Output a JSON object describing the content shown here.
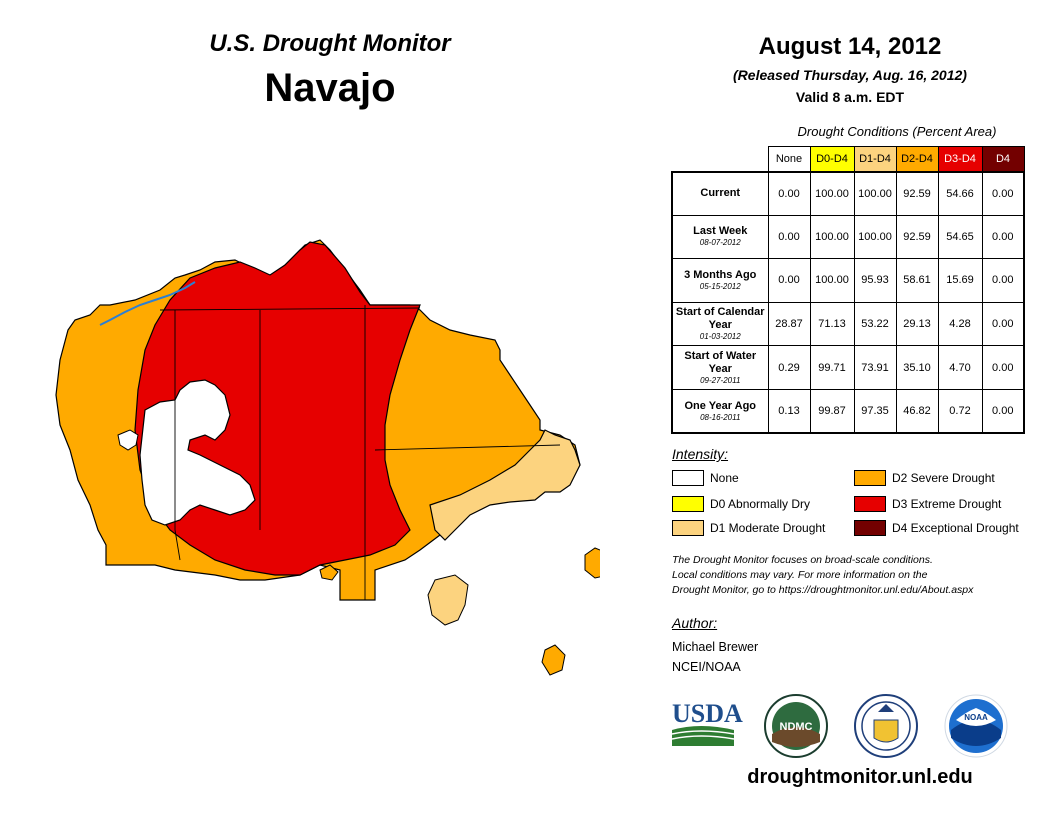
{
  "header": {
    "title": "U.S. Drought Monitor",
    "region": "Navajo",
    "date": "August 14, 2012",
    "released": "(Released Thursday, Aug. 16, 2012)",
    "valid": "Valid 8 a.m. EDT"
  },
  "table": {
    "caption": "Drought Conditions (Percent Area)",
    "columns": [
      {
        "label": "None",
        "bg": "#ffffff",
        "fg": "#000000"
      },
      {
        "label": "D0-D4",
        "bg": "#ffff00",
        "fg": "#000000"
      },
      {
        "label": "D1-D4",
        "bg": "#fcd37f",
        "fg": "#000000"
      },
      {
        "label": "D2-D4",
        "bg": "#ffaa00",
        "fg": "#000000"
      },
      {
        "label": "D3-D4",
        "bg": "#e60000",
        "fg": "#ffffff"
      },
      {
        "label": "D4",
        "bg": "#730000",
        "fg": "#ffffff"
      }
    ],
    "rows": [
      {
        "label": "Current",
        "date": "",
        "values": [
          "0.00",
          "100.00",
          "100.00",
          "92.59",
          "54.66",
          "0.00"
        ]
      },
      {
        "label": "Last Week",
        "date": "08-07-2012",
        "values": [
          "0.00",
          "100.00",
          "100.00",
          "92.59",
          "54.65",
          "0.00"
        ]
      },
      {
        "label": "3 Months Ago",
        "date": "05-15-2012",
        "values": [
          "0.00",
          "100.00",
          "95.93",
          "58.61",
          "15.69",
          "0.00"
        ]
      },
      {
        "label": "Start of Calendar Year",
        "date": "01-03-2012",
        "values": [
          "28.87",
          "71.13",
          "53.22",
          "29.13",
          "4.28",
          "0.00"
        ]
      },
      {
        "label": "Start of Water Year",
        "date": "09-27-2011",
        "values": [
          "0.29",
          "99.71",
          "73.91",
          "35.10",
          "4.70",
          "0.00"
        ]
      },
      {
        "label": "One Year Ago",
        "date": "08-16-2011",
        "values": [
          "0.13",
          "99.87",
          "97.35",
          "46.82",
          "0.72",
          "0.00"
        ]
      }
    ]
  },
  "legend": {
    "title": "Intensity:",
    "items": [
      {
        "label": "None",
        "color": "#ffffff"
      },
      {
        "label": "D0 Abnormally Dry",
        "color": "#ffff00"
      },
      {
        "label": "D1 Moderate Drought",
        "color": "#fcd37f"
      },
      {
        "label": "D2 Severe Drought",
        "color": "#ffaa00"
      },
      {
        "label": "D3 Extreme Drought",
        "color": "#e60000"
      },
      {
        "label": "D4 Exceptional Drought",
        "color": "#730000"
      }
    ]
  },
  "note": {
    "line1": "The Drought Monitor focuses on broad-scale conditions.",
    "line2": "Local conditions may vary. For more information on the",
    "line3": "Drought Monitor, go to https://droughtmonitor.unl.edu/About.aspx"
  },
  "author": {
    "title": "Author:",
    "name": "Michael Brewer",
    "org": "NCEI/NOAA"
  },
  "logos": {
    "usda": "USDA",
    "ndmc": "NDMC",
    "noaa": "NOAA"
  },
  "footer_url": "droughtmonitor.unl.edu",
  "colors": {
    "d1": "#fcd37f",
    "d2": "#ffaa00",
    "d3": "#e60000",
    "boundary": "#000000",
    "water": "#2b7fd4"
  }
}
